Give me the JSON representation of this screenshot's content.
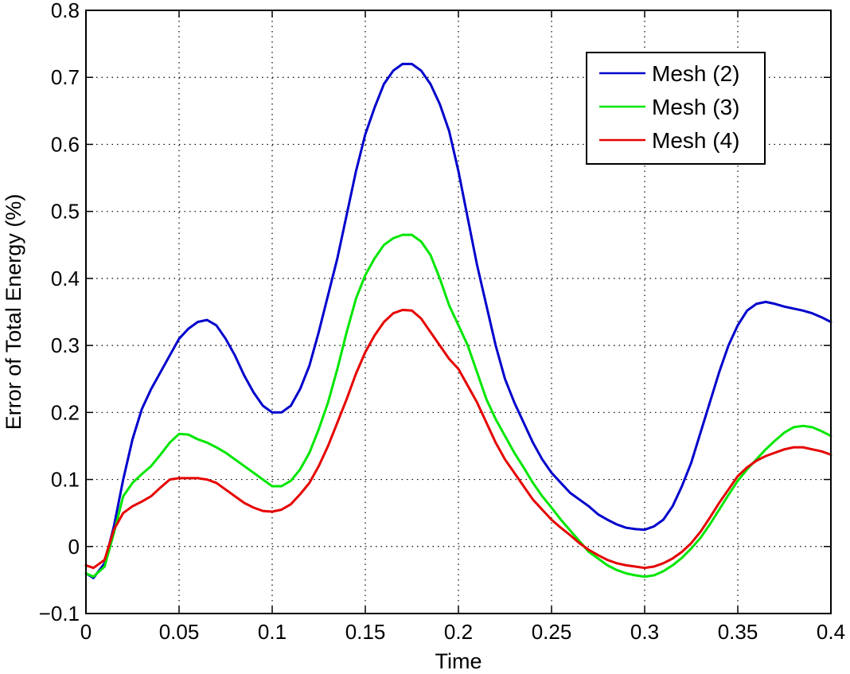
{
  "chart_data": {
    "type": "line",
    "xlabel": "Time",
    "ylabel": "Error of Total Energy (%)",
    "xlim": [
      0,
      0.4
    ],
    "ylim": [
      -0.1,
      0.8
    ],
    "xticks": [
      "0",
      "0.05",
      "0.1",
      "0.15",
      "0.2",
      "0.25",
      "0.3",
      "0.35",
      "0.4"
    ],
    "yticks": [
      "−0.1",
      "0",
      "0.1",
      "0.2",
      "0.3",
      "0.4",
      "0.5",
      "0.6",
      "0.7",
      "0.8"
    ],
    "grid": true,
    "legend_position": "top-right",
    "series": [
      {
        "name": "Mesh (2)",
        "color": "#0000cc",
        "x": [
          0,
          0.004,
          0.01,
          0.015,
          0.02,
          0.025,
          0.03,
          0.035,
          0.04,
          0.045,
          0.05,
          0.055,
          0.06,
          0.065,
          0.07,
          0.075,
          0.08,
          0.085,
          0.09,
          0.095,
          0.1,
          0.105,
          0.11,
          0.115,
          0.12,
          0.125,
          0.13,
          0.135,
          0.14,
          0.145,
          0.15,
          0.155,
          0.16,
          0.165,
          0.17,
          0.175,
          0.18,
          0.185,
          0.19,
          0.195,
          0.2,
          0.205,
          0.21,
          0.215,
          0.22,
          0.225,
          0.23,
          0.235,
          0.24,
          0.245,
          0.25,
          0.255,
          0.26,
          0.265,
          0.27,
          0.275,
          0.28,
          0.285,
          0.29,
          0.295,
          0.3,
          0.305,
          0.31,
          0.315,
          0.32,
          0.325,
          0.33,
          0.335,
          0.34,
          0.345,
          0.35,
          0.355,
          0.36,
          0.365,
          0.37,
          0.375,
          0.38,
          0.385,
          0.39,
          0.395,
          0.4
        ],
        "y": [
          -0.04,
          -0.047,
          -0.025,
          0.03,
          0.1,
          0.16,
          0.205,
          0.235,
          0.26,
          0.285,
          0.31,
          0.325,
          0.335,
          0.338,
          0.33,
          0.31,
          0.285,
          0.255,
          0.23,
          0.21,
          0.2,
          0.2,
          0.21,
          0.235,
          0.27,
          0.32,
          0.375,
          0.43,
          0.495,
          0.56,
          0.615,
          0.655,
          0.69,
          0.71,
          0.72,
          0.72,
          0.71,
          0.69,
          0.66,
          0.62,
          0.56,
          0.49,
          0.42,
          0.36,
          0.3,
          0.25,
          0.215,
          0.185,
          0.155,
          0.13,
          0.11,
          0.095,
          0.08,
          0.07,
          0.06,
          0.048,
          0.04,
          0.033,
          0.028,
          0.026,
          0.025,
          0.03,
          0.04,
          0.06,
          0.09,
          0.125,
          0.17,
          0.215,
          0.26,
          0.3,
          0.33,
          0.352,
          0.362,
          0.365,
          0.362,
          0.358,
          0.355,
          0.352,
          0.348,
          0.342,
          0.335
        ]
      },
      {
        "name": "Mesh (3)",
        "color": "#00e600",
        "x": [
          0,
          0.004,
          0.01,
          0.015,
          0.02,
          0.025,
          0.03,
          0.035,
          0.04,
          0.045,
          0.05,
          0.055,
          0.06,
          0.065,
          0.07,
          0.075,
          0.08,
          0.085,
          0.09,
          0.095,
          0.1,
          0.105,
          0.11,
          0.115,
          0.12,
          0.125,
          0.13,
          0.135,
          0.14,
          0.145,
          0.15,
          0.155,
          0.16,
          0.165,
          0.17,
          0.175,
          0.18,
          0.185,
          0.19,
          0.195,
          0.2,
          0.205,
          0.21,
          0.215,
          0.22,
          0.225,
          0.23,
          0.235,
          0.24,
          0.245,
          0.25,
          0.255,
          0.26,
          0.265,
          0.27,
          0.275,
          0.28,
          0.285,
          0.29,
          0.295,
          0.3,
          0.305,
          0.31,
          0.315,
          0.32,
          0.325,
          0.33,
          0.335,
          0.34,
          0.345,
          0.35,
          0.355,
          0.36,
          0.365,
          0.37,
          0.375,
          0.38,
          0.385,
          0.39,
          0.395,
          0.4
        ],
        "y": [
          -0.04,
          -0.045,
          -0.03,
          0.02,
          0.075,
          0.095,
          0.108,
          0.12,
          0.137,
          0.155,
          0.168,
          0.167,
          0.16,
          0.155,
          0.148,
          0.14,
          0.13,
          0.12,
          0.11,
          0.1,
          0.09,
          0.09,
          0.098,
          0.115,
          0.14,
          0.175,
          0.215,
          0.265,
          0.32,
          0.37,
          0.405,
          0.43,
          0.45,
          0.46,
          0.465,
          0.465,
          0.455,
          0.435,
          0.4,
          0.36,
          0.33,
          0.3,
          0.26,
          0.22,
          0.19,
          0.165,
          0.14,
          0.118,
          0.095,
          0.075,
          0.058,
          0.04,
          0.024,
          0.008,
          -0.008,
          -0.018,
          -0.028,
          -0.035,
          -0.04,
          -0.043,
          -0.045,
          -0.043,
          -0.037,
          -0.028,
          -0.017,
          -0.003,
          0.013,
          0.033,
          0.055,
          0.077,
          0.098,
          0.115,
          0.13,
          0.145,
          0.158,
          0.17,
          0.178,
          0.18,
          0.178,
          0.172,
          0.165
        ]
      },
      {
        "name": "Mesh (4)",
        "color": "#e60000",
        "x": [
          0,
          0.004,
          0.01,
          0.015,
          0.02,
          0.025,
          0.03,
          0.035,
          0.04,
          0.045,
          0.05,
          0.055,
          0.06,
          0.065,
          0.07,
          0.075,
          0.08,
          0.085,
          0.09,
          0.095,
          0.1,
          0.105,
          0.11,
          0.115,
          0.12,
          0.125,
          0.13,
          0.135,
          0.14,
          0.145,
          0.15,
          0.155,
          0.16,
          0.165,
          0.17,
          0.175,
          0.18,
          0.185,
          0.19,
          0.195,
          0.2,
          0.205,
          0.21,
          0.215,
          0.22,
          0.225,
          0.23,
          0.235,
          0.24,
          0.245,
          0.25,
          0.255,
          0.26,
          0.265,
          0.27,
          0.275,
          0.28,
          0.285,
          0.29,
          0.295,
          0.3,
          0.305,
          0.31,
          0.315,
          0.32,
          0.325,
          0.33,
          0.335,
          0.34,
          0.345,
          0.35,
          0.355,
          0.36,
          0.365,
          0.37,
          0.375,
          0.38,
          0.385,
          0.39,
          0.395,
          0.4
        ],
        "y": [
          -0.028,
          -0.032,
          -0.02,
          0.025,
          0.05,
          0.06,
          0.067,
          0.075,
          0.088,
          0.1,
          0.102,
          0.102,
          0.102,
          0.1,
          0.095,
          0.085,
          0.075,
          0.065,
          0.058,
          0.053,
          0.052,
          0.055,
          0.063,
          0.078,
          0.095,
          0.12,
          0.15,
          0.185,
          0.22,
          0.258,
          0.29,
          0.315,
          0.335,
          0.348,
          0.353,
          0.352,
          0.34,
          0.32,
          0.3,
          0.28,
          0.265,
          0.24,
          0.215,
          0.185,
          0.155,
          0.13,
          0.11,
          0.09,
          0.07,
          0.055,
          0.04,
          0.028,
          0.017,
          0.005,
          -0.005,
          -0.013,
          -0.02,
          -0.025,
          -0.028,
          -0.03,
          -0.032,
          -0.03,
          -0.025,
          -0.018,
          -0.008,
          0.005,
          0.022,
          0.043,
          0.065,
          0.085,
          0.105,
          0.118,
          0.128,
          0.135,
          0.14,
          0.145,
          0.148,
          0.148,
          0.145,
          0.142,
          0.137
        ]
      }
    ]
  }
}
